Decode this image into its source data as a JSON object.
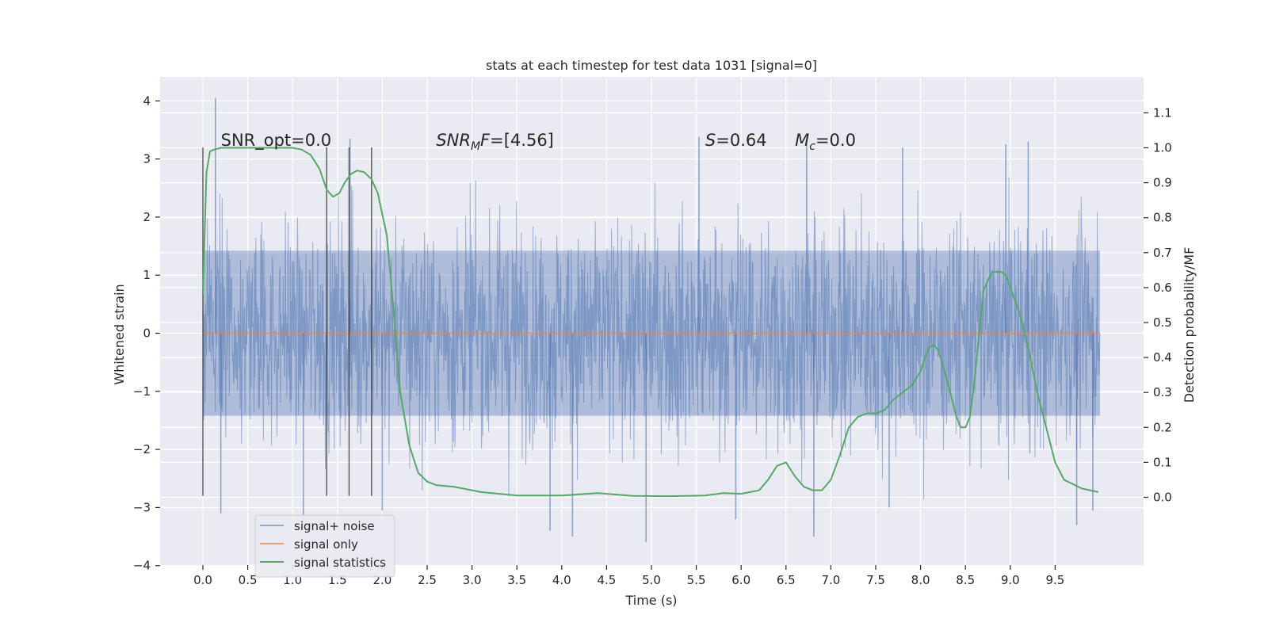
{
  "chart_data": {
    "type": "line",
    "title": "stats at each timestep for test data 1031 [signal=0]",
    "xlabel": "Time (s)",
    "ylabel": "Whitened strain",
    "y2label": "Detection probability/MF",
    "xlim": [
      -0.5,
      10.5
    ],
    "ylim": [
      -4,
      4.4
    ],
    "y2lim": [
      -0.198,
      1.198
    ],
    "x_ticks": [
      "0.0",
      "0.5",
      "1.0",
      "1.5",
      "2.0",
      "2.5",
      "3.0",
      "3.5",
      "4.0",
      "4.5",
      "5.0",
      "5.5",
      "6.0",
      "6.5",
      "7.0",
      "7.5",
      "8.0",
      "8.5",
      "9.0",
      "9.5"
    ],
    "y_ticks": [
      "4",
      "3",
      "2",
      "1",
      "0",
      "−1",
      "−2",
      "−3",
      "−4"
    ],
    "y_tick_values": [
      4,
      3,
      2,
      1,
      0,
      -1,
      -2,
      -3,
      -4
    ],
    "y2_ticks": [
      "1.1",
      "1.0",
      "0.9",
      "0.8",
      "0.7",
      "0.6",
      "0.5",
      "0.4",
      "0.3",
      "0.2",
      "0.1",
      "0.0"
    ],
    "y2_tick_values": [
      1.1,
      1.0,
      0.9,
      0.8,
      0.7,
      0.6,
      0.5,
      0.4,
      0.3,
      0.2,
      0.1,
      0.0
    ],
    "grid": true,
    "legend_position": "lower-left",
    "background": "#eaeaf2",
    "grid_color": "#ffffff",
    "series": [
      {
        "name": "signal+ noise",
        "color": "#4c72b0",
        "opacity": 0.5,
        "x_range": [
          0,
          10
        ],
        "approx_amplitude_std": 1.0,
        "approx_min": -3.7,
        "approx_max": 4.05,
        "highlighted_spikes": [
          [
            0.14,
            4.05
          ],
          [
            1.64,
            3.35
          ],
          [
            5.53,
            3.38
          ],
          [
            6.73,
            3.3
          ],
          [
            7.8,
            3.2
          ],
          [
            8.95,
            3.25
          ],
          [
            9.2,
            3.3
          ],
          [
            4.94,
            -3.6
          ],
          [
            5.94,
            -3.2
          ],
          [
            4.12,
            -3.5
          ],
          [
            6.81,
            -3.5
          ],
          [
            7.65,
            -3.0
          ],
          [
            9.74,
            -3.3
          ],
          [
            9.92,
            -3.05
          ],
          [
            1.12,
            -3.3
          ],
          [
            0.2,
            -3.1
          ],
          [
            2.0,
            -3.05
          ],
          [
            3.87,
            -3.4
          ]
        ]
      },
      {
        "name": "signal only",
        "color": "#dd8452",
        "x": [
          0,
          10
        ],
        "y": [
          0,
          0
        ]
      },
      {
        "name": "signal statistics",
        "color": "#55a868",
        "axis": "right",
        "x": [
          0.0,
          0.04,
          0.08,
          0.13,
          0.2,
          0.35,
          0.6,
          0.8,
          1.0,
          1.1,
          1.2,
          1.3,
          1.38,
          1.45,
          1.52,
          1.58,
          1.65,
          1.72,
          1.8,
          1.88,
          1.95,
          2.05,
          2.12,
          2.2,
          2.3,
          2.4,
          2.5,
          2.6,
          2.8,
          3.1,
          3.5,
          4.0,
          4.4,
          4.8,
          5.2,
          5.6,
          5.8,
          6.0,
          6.2,
          6.3,
          6.4,
          6.5,
          6.6,
          6.7,
          6.8,
          6.9,
          7.0,
          7.1,
          7.2,
          7.3,
          7.4,
          7.5,
          7.6,
          7.7,
          7.8,
          7.9,
          8.0,
          8.05,
          8.1,
          8.15,
          8.2,
          8.3,
          8.4,
          8.45,
          8.5,
          8.55,
          8.6,
          8.7,
          8.75,
          8.8,
          8.85,
          8.9,
          8.95,
          9.0,
          9.1,
          9.2,
          9.3,
          9.4,
          9.5,
          9.6,
          9.8,
          9.98
        ],
        "y": [
          0.58,
          0.93,
          0.99,
          0.995,
          1.0,
          1.0,
          1.0,
          1.0,
          1.0,
          0.995,
          0.98,
          0.94,
          0.88,
          0.86,
          0.87,
          0.9,
          0.925,
          0.935,
          0.93,
          0.91,
          0.87,
          0.75,
          0.55,
          0.3,
          0.15,
          0.07,
          0.045,
          0.035,
          0.03,
          0.015,
          0.005,
          0.005,
          0.012,
          0.004,
          0.003,
          0.005,
          0.012,
          0.01,
          0.02,
          0.05,
          0.09,
          0.1,
          0.06,
          0.03,
          0.02,
          0.02,
          0.05,
          0.12,
          0.2,
          0.23,
          0.24,
          0.24,
          0.25,
          0.28,
          0.3,
          0.32,
          0.36,
          0.4,
          0.43,
          0.435,
          0.42,
          0.33,
          0.23,
          0.2,
          0.2,
          0.23,
          0.33,
          0.59,
          0.62,
          0.645,
          0.645,
          0.645,
          0.635,
          0.6,
          0.53,
          0.43,
          0.3,
          0.2,
          0.1,
          0.05,
          0.025,
          0.015
        ]
      }
    ],
    "vlines": [
      {
        "x": 0.0,
        "ymin": -2.8,
        "ymax": 3.2
      },
      {
        "x": 1.38,
        "ymin": -2.8,
        "ymax": 3.2
      },
      {
        "x": 1.63,
        "ymin": -2.8,
        "ymax": 3.2
      },
      {
        "x": 1.88,
        "ymin": -2.8,
        "ymax": 3.2
      }
    ],
    "annotations": [
      {
        "x": 0.2,
        "y": 3.2,
        "text": "SNR_opt=0.0",
        "html": "SNR_opt=0.0"
      },
      {
        "x": 2.6,
        "y": 3.2,
        "text": "SNR_MF=[4.56]",
        "parts": [
          [
            "SNR",
            "i",
            0
          ],
          [
            "MF",
            "i",
            1
          ],
          [
            "F=[4.56]",
            "mix",
            0
          ]
        ]
      },
      {
        "x": 5.6,
        "y": 3.2,
        "text": "S=0.64",
        "parts": [
          [
            "S",
            "i",
            0
          ],
          [
            "=0.64",
            "n",
            0
          ]
        ]
      },
      {
        "x": 6.6,
        "y": 3.2,
        "text": "M_c=0.0",
        "parts": [
          [
            "M",
            "i",
            0
          ],
          [
            "c",
            "i",
            1
          ],
          [
            "=0.0",
            "n",
            0
          ]
        ]
      }
    ]
  },
  "legend": {
    "items": [
      {
        "label": "signal+ noise",
        "color": "#4c72b0",
        "opacity": 0.55
      },
      {
        "label": "signal only",
        "color": "#dd8452",
        "opacity": 0.7
      },
      {
        "label": "signal statistics",
        "color": "#55a868",
        "opacity": 1
      }
    ]
  }
}
